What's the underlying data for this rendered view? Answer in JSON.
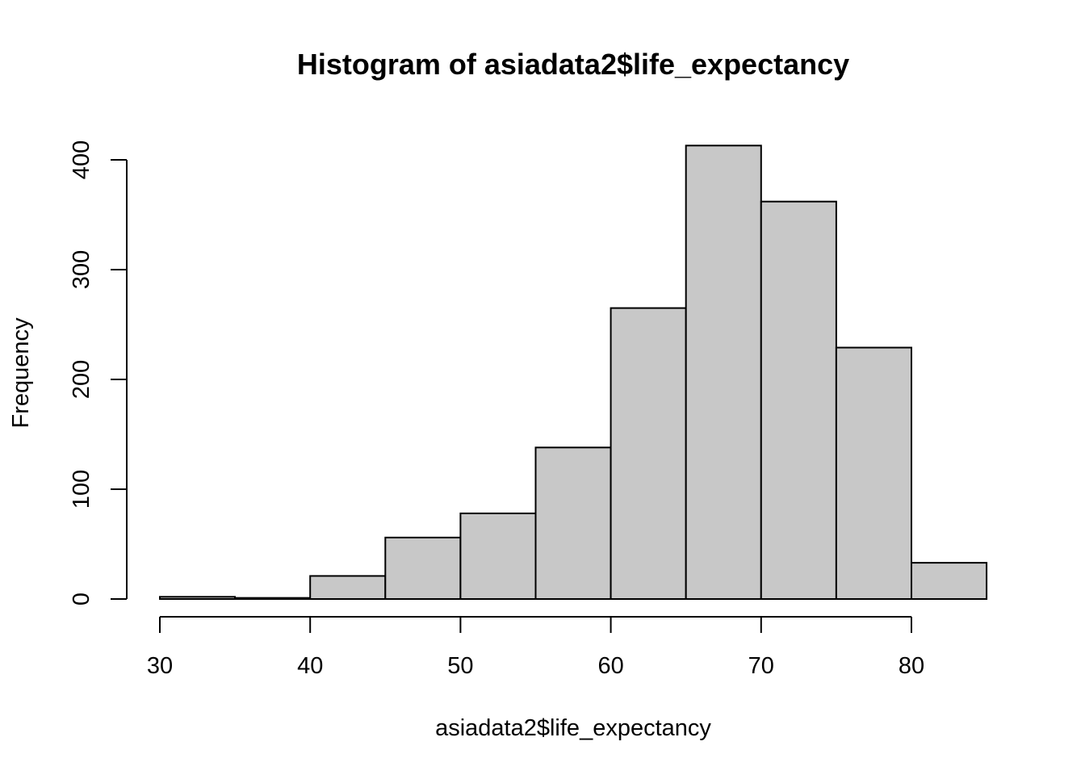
{
  "chart_data": {
    "type": "bar",
    "subtype": "histogram",
    "title": "Histogram of asiadata2$life_expectancy",
    "xlabel": "asiadata2$life_expectancy",
    "ylabel": "Frequency",
    "bins": [
      {
        "x0": 30,
        "x1": 35,
        "value": 2
      },
      {
        "x0": 35,
        "x1": 40,
        "value": 1
      },
      {
        "x0": 40,
        "x1": 45,
        "value": 21
      },
      {
        "x0": 45,
        "x1": 50,
        "value": 56
      },
      {
        "x0": 50,
        "x1": 55,
        "value": 78
      },
      {
        "x0": 55,
        "x1": 60,
        "value": 138
      },
      {
        "x0": 60,
        "x1": 65,
        "value": 265
      },
      {
        "x0": 65,
        "x1": 70,
        "value": 413
      },
      {
        "x0": 70,
        "x1": 75,
        "value": 362
      },
      {
        "x0": 75,
        "x1": 80,
        "value": 229
      },
      {
        "x0": 80,
        "x1": 85,
        "value": 33
      }
    ],
    "x_ticks": [
      "30",
      "40",
      "50",
      "60",
      "70",
      "80"
    ],
    "y_ticks": [
      "0",
      "100",
      "200",
      "300",
      "400"
    ],
    "xlim": [
      30,
      85
    ],
    "ylim": [
      0,
      413
    ],
    "bar_color": "#c8c8c8",
    "edge_color": "#000000",
    "grid": false,
    "legend": false
  }
}
